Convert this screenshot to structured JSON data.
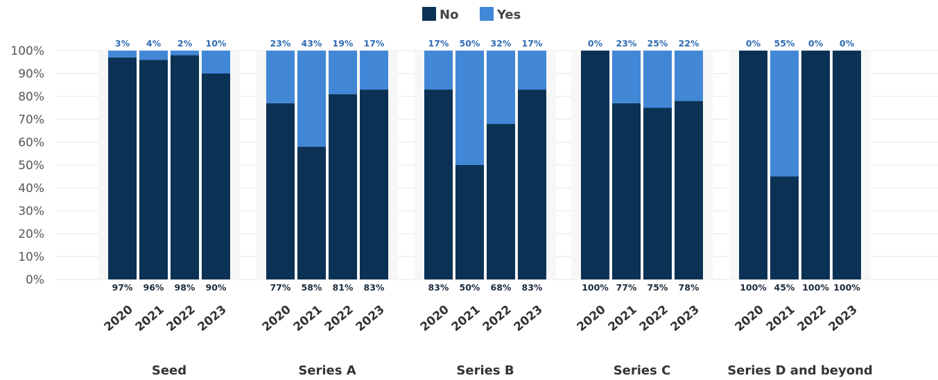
{
  "chart_data": {
    "type": "bar",
    "stacked": true,
    "percent": true,
    "ylim": [
      0,
      100
    ],
    "yticks": [
      0,
      10,
      20,
      30,
      40,
      50,
      60,
      70,
      80,
      90,
      100
    ],
    "ytick_suffix": "%",
    "grid": true,
    "legend_position": "top-center",
    "series": [
      {
        "name": "No",
        "color": "#0b3255"
      },
      {
        "name": "Yes",
        "color": "#4287d6"
      }
    ],
    "groups": [
      {
        "name": "Seed",
        "categories": [
          "2020",
          "2021",
          "2022",
          "2023"
        ],
        "no": [
          97,
          96,
          98,
          90
        ],
        "yes": [
          3,
          4,
          2,
          10
        ]
      },
      {
        "name": "Series A",
        "categories": [
          "2020",
          "2021",
          "2022",
          "2023"
        ],
        "no": [
          77,
          58,
          81,
          83
        ],
        "yes": [
          23,
          43,
          19,
          17
        ]
      },
      {
        "name": "Series B",
        "categories": [
          "2020",
          "2021",
          "2022",
          "2023"
        ],
        "no": [
          83,
          50,
          68,
          83
        ],
        "yes": [
          17,
          50,
          32,
          17
        ]
      },
      {
        "name": "Series C",
        "categories": [
          "2020",
          "2021",
          "2022",
          "2023"
        ],
        "no": [
          100,
          77,
          75,
          78
        ],
        "yes": [
          0,
          23,
          25,
          22
        ]
      },
      {
        "name": "Series D and beyond",
        "categories": [
          "2020",
          "2021",
          "2022",
          "2023"
        ],
        "no": [
          100,
          45,
          100,
          100
        ],
        "yes": [
          0,
          55,
          0,
          0
        ]
      }
    ]
  }
}
